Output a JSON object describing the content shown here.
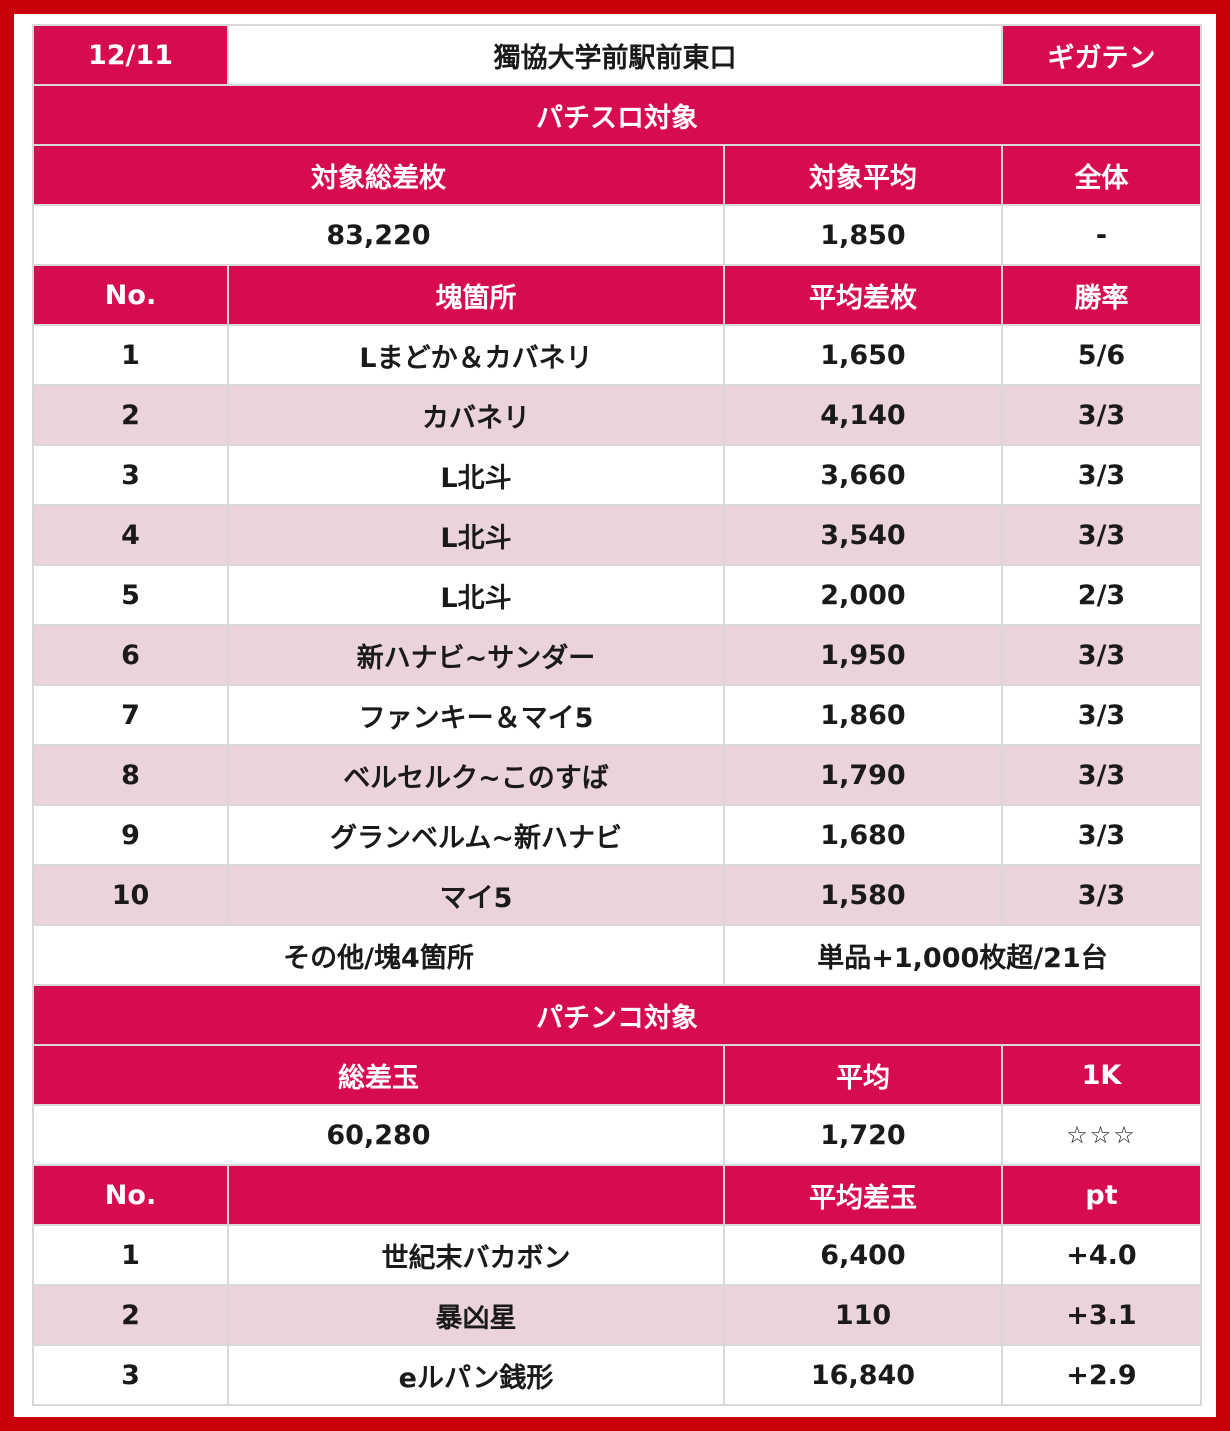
{
  "header": {
    "date": "12/11",
    "store": "獨協大学前駅前東口",
    "brand": "ギガテン"
  },
  "slot": {
    "section_title": "パチスロ対象",
    "summary_headers": [
      "対象総差枚",
      "対象平均",
      "全体"
    ],
    "summary_values": [
      "83,220",
      "1,850",
      "-"
    ],
    "table_headers": [
      "No.",
      "塊箇所",
      "平均差枚",
      "勝率"
    ],
    "rows": [
      [
        "1",
        "Lまどか＆カバネリ",
        "1,650",
        "5/6"
      ],
      [
        "2",
        "カバネリ",
        "4,140",
        "3/3"
      ],
      [
        "3",
        "L北斗",
        "3,660",
        "3/3"
      ],
      [
        "4",
        "L北斗",
        "3,540",
        "3/3"
      ],
      [
        "5",
        "L北斗",
        "2,000",
        "2/3"
      ],
      [
        "6",
        "新ハナビ~サンダー",
        "1,950",
        "3/3"
      ],
      [
        "7",
        "ファンキー＆マイ5",
        "1,860",
        "3/3"
      ],
      [
        "8",
        "ベルセルク~このすば",
        "1,790",
        "3/3"
      ],
      [
        "9",
        "グランベルム~新ハナビ",
        "1,680",
        "3/3"
      ],
      [
        "10",
        "マイ5",
        "1,580",
        "3/3"
      ]
    ],
    "footer_left": "その他/塊4箇所",
    "footer_right": "単品+1,000枚超/21台"
  },
  "pachinko": {
    "section_title": "パチンコ対象",
    "summary_headers": [
      "総差玉",
      "平均",
      "1K"
    ],
    "summary_values": [
      "60,280",
      "1,720",
      "☆☆☆"
    ],
    "table_headers": [
      "No.",
      "",
      "平均差玉",
      "pt"
    ],
    "rows": [
      [
        "1",
        "世紀末バカボン",
        "6,400",
        "+4.0"
      ],
      [
        "2",
        "暴凶星",
        "110",
        "+3.1"
      ],
      [
        "3",
        "eルパン銭形",
        "16,840",
        "+2.9"
      ]
    ]
  }
}
